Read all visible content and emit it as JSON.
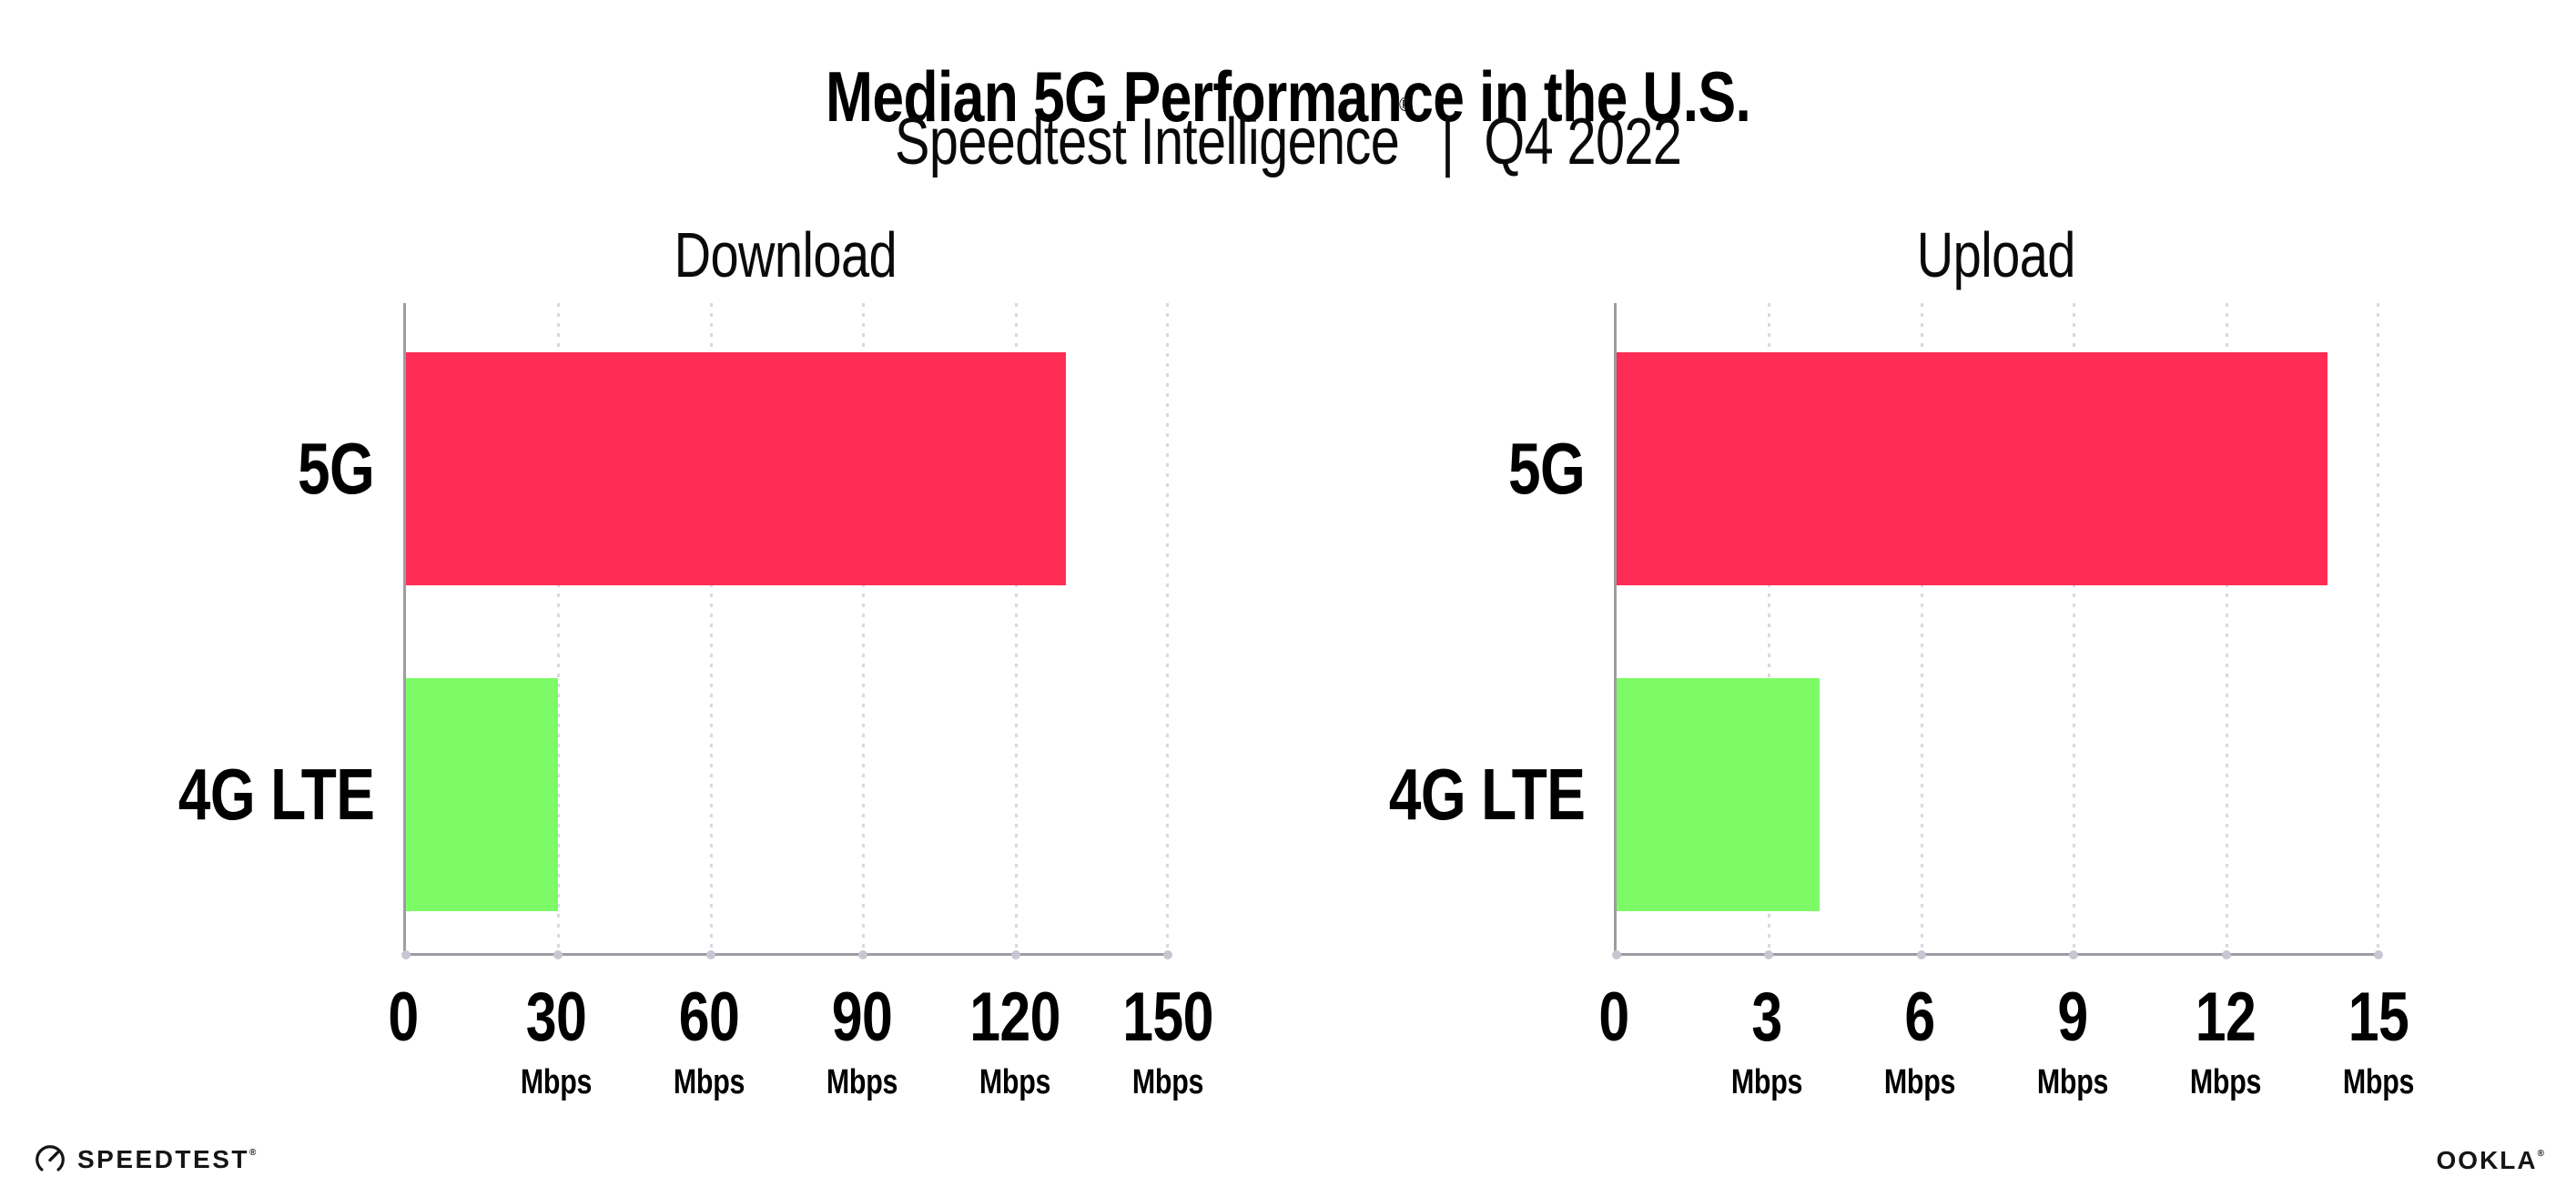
{
  "title": "Median 5G Performance in the U.S.",
  "subtitle": {
    "product": "Speedtest Intelligence",
    "reg": "®",
    "separator": "|",
    "period": "Q4 2022"
  },
  "colors": {
    "bar_5g": "#FF2D55",
    "bar_4g_lte": "#7DFB66",
    "axis": "#9C9CA4",
    "gridline": "#D9D9E3",
    "text": "#000000"
  },
  "chart_data": [
    {
      "type": "bar",
      "orientation": "horizontal",
      "title": "Download",
      "categories": [
        "5G",
        "4G LTE"
      ],
      "values": [
        130,
        30
      ],
      "unit": "Mbps",
      "xlim": [
        0,
        150
      ],
      "tick_step": 30,
      "grid": "dotted-vertical",
      "ticks": [
        {
          "label": "0",
          "unit": ""
        },
        {
          "label": "30",
          "unit": "Mbps"
        },
        {
          "label": "60",
          "unit": "Mbps"
        },
        {
          "label": "90",
          "unit": "Mbps"
        },
        {
          "label": "120",
          "unit": "Mbps"
        },
        {
          "label": "150",
          "unit": "Mbps"
        }
      ]
    },
    {
      "type": "bar",
      "orientation": "horizontal",
      "title": "Upload",
      "categories": [
        "5G",
        "4G LTE"
      ],
      "values": [
        14,
        4
      ],
      "unit": "Mbps",
      "xlim": [
        0,
        15
      ],
      "tick_step": 3,
      "grid": "dotted-vertical",
      "ticks": [
        {
          "label": "0",
          "unit": ""
        },
        {
          "label": "3",
          "unit": "Mbps"
        },
        {
          "label": "6",
          "unit": "Mbps"
        },
        {
          "label": "9",
          "unit": "Mbps"
        },
        {
          "label": "12",
          "unit": "Mbps"
        },
        {
          "label": "15",
          "unit": "Mbps"
        }
      ]
    }
  ],
  "footer": {
    "speedtest_text": "SPEEDTEST",
    "speedtest_mark": "®",
    "ookla_text": "OOKLA",
    "ookla_mark": "®"
  }
}
